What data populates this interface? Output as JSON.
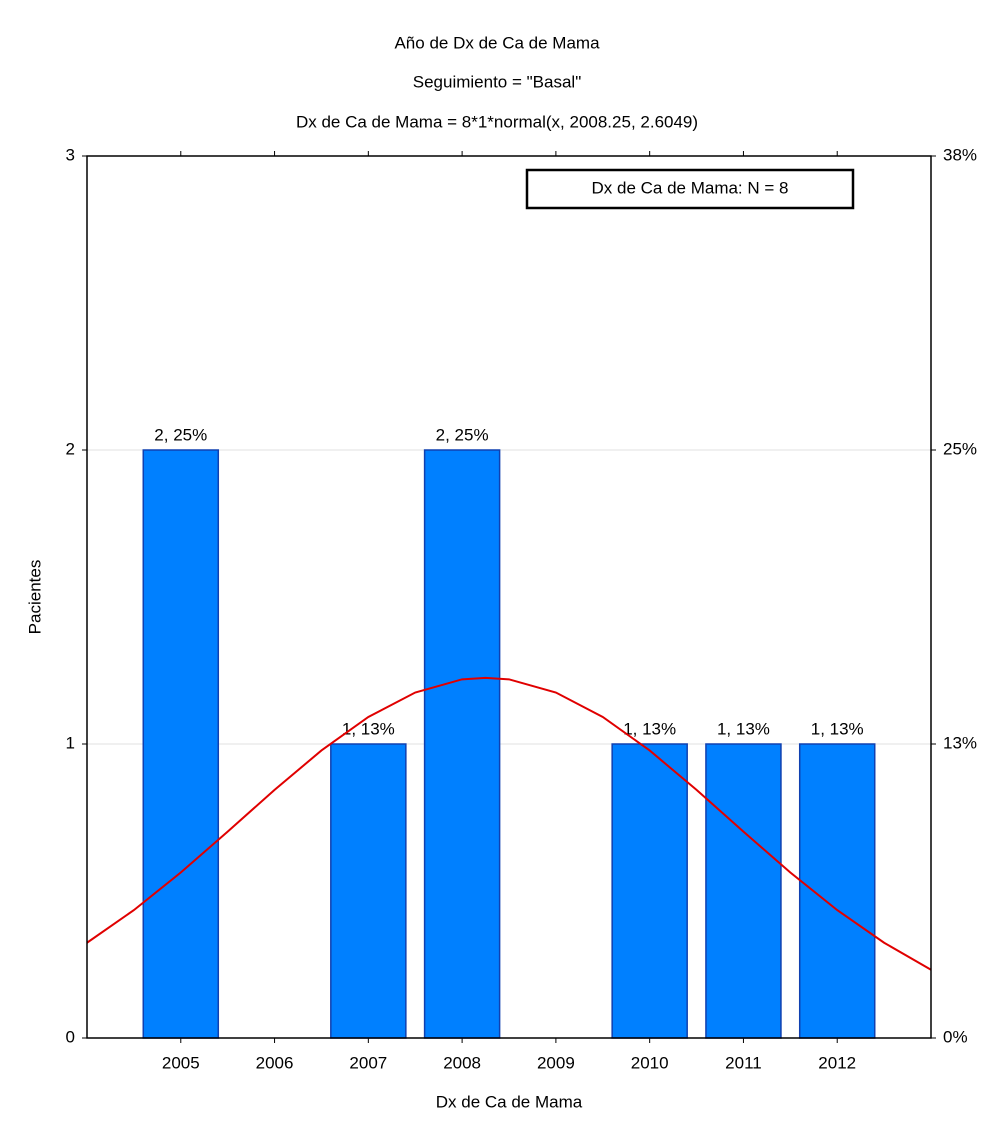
{
  "chart_data": {
    "type": "bar",
    "title": "Año de Dx de Ca de Mama",
    "subtitle": "Seguimiento = \"Basal\"",
    "fit_label": "Dx de Ca de Mama = 8*1*normal(x, 2008.25, 2.6049)",
    "x_label": "Dx de Ca de Mama",
    "y_label": "Pacientes",
    "legend_text": "Dx de Ca de Mama:  N = 8",
    "x": [
      2005,
      2006,
      2007,
      2008,
      2009,
      2010,
      2011,
      2012
    ],
    "values": [
      2,
      0,
      1,
      2,
      0,
      1,
      1,
      1
    ],
    "value_labels": [
      "2, 25%",
      null,
      "1, 13%",
      "2, 25%",
      null,
      "1, 13%",
      "1, 13%",
      "1, 13%"
    ],
    "color": "#0080ff",
    "xlim": [
      2004,
      2013
    ],
    "xticks": [
      2005,
      2006,
      2007,
      2008,
      2009,
      2010,
      2011,
      2012
    ],
    "ylim": [
      0,
      3
    ],
    "yticks": [
      0,
      1,
      2,
      3
    ],
    "y2lim": [
      0,
      37.5
    ],
    "y2ticks": [
      {
        "value": 0,
        "label": "0%"
      },
      {
        "value": 12.5,
        "label": "13%"
      },
      {
        "value": 25,
        "label": "25%"
      },
      {
        "value": 37.5,
        "label": "38%"
      }
    ],
    "grid": true,
    "curve": {
      "color": "#e00000",
      "x": [
        2004,
        2004.5,
        2005,
        2005.5,
        2006,
        2006.5,
        2007,
        2007.5,
        2008,
        2008.25,
        2008.5,
        2009,
        2009.5,
        2010,
        2010.5,
        2011,
        2011.5,
        2012,
        2012.5,
        2013
      ],
      "values": [
        0.324,
        0.435,
        0.563,
        0.702,
        0.844,
        0.978,
        1.092,
        1.175,
        1.22,
        1.225,
        1.22,
        1.175,
        1.092,
        0.978,
        0.844,
        0.702,
        0.563,
        0.435,
        0.324,
        0.232
      ]
    }
  }
}
